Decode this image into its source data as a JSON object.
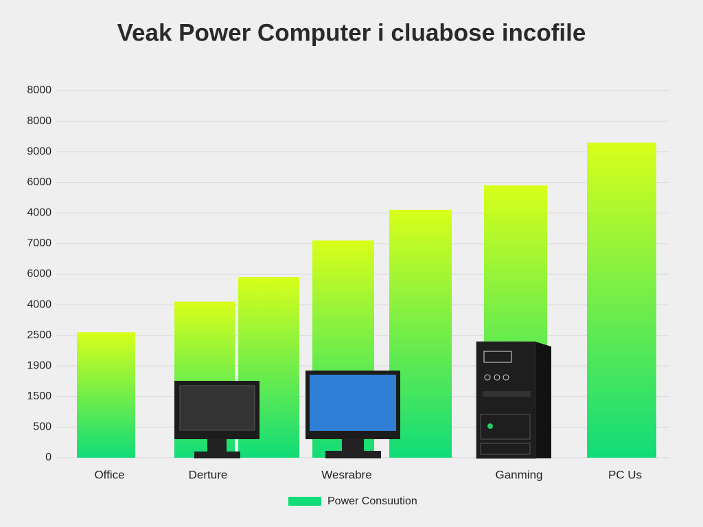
{
  "chart_data": {
    "type": "bar",
    "title": "Veak Power Computer i cluabose incofile",
    "categories": [
      "Office",
      "Derture",
      null,
      "Wesrabre",
      null,
      "Ganming",
      "PC Us"
    ],
    "series": [
      {
        "name": "Power Consuution",
        "color": "#10dc78",
        "top_color": "#d8ff1a",
        "values": [
          4.1,
          5.1,
          5.9,
          7.1,
          8.1,
          8.9,
          10.3
        ]
      }
    ],
    "ylim": [
      0,
      12
    ],
    "yticks": [
      {
        "value": 0,
        "label": "0"
      },
      {
        "value": 1,
        "label": "500"
      },
      {
        "value": 2,
        "label": "1500"
      },
      {
        "value": 3,
        "label": "1900"
      },
      {
        "value": 4,
        "label": "2500"
      },
      {
        "value": 5,
        "label": "4000"
      },
      {
        "value": 6,
        "label": "6000"
      },
      {
        "value": 7,
        "label": "7000"
      },
      {
        "value": 8,
        "label": "4000"
      },
      {
        "value": 9,
        "label": "6000"
      },
      {
        "value": 10,
        "label": "9000"
      },
      {
        "value": 11,
        "label": "8000"
      },
      {
        "value": 12,
        "label": "8000"
      }
    ],
    "grid": true
  }
}
